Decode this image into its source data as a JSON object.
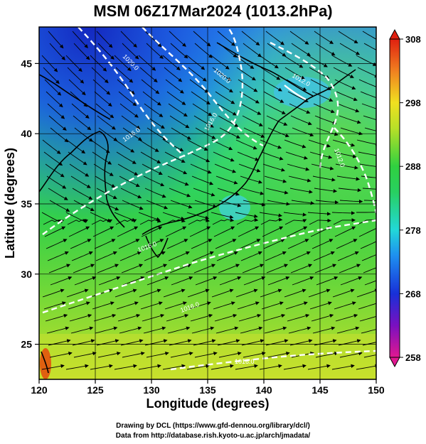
{
  "title": "MSM 06Z17Mar2024 (1013.2hPa)",
  "axes": {
    "xlabel": "Longitude (degrees)",
    "ylabel": "Latitude  (degrees)",
    "xlim": [
      120,
      150
    ],
    "ylim": [
      22.5,
      47.6
    ],
    "xticks": [
      "120",
      "125",
      "130",
      "135",
      "140",
      "145",
      "150"
    ],
    "yticks": [
      "25",
      "30",
      "35",
      "40",
      "45"
    ]
  },
  "colorbar": {
    "min": 258,
    "max": 308,
    "ticks": [
      "258",
      "268",
      "278",
      "288",
      "298",
      "308"
    ]
  },
  "isobar_labels": [
    "1020.0",
    "1020.0",
    "1016.0",
    "1016.0",
    "1012.0",
    "1016.0",
    "1016.0",
    "1016.0",
    "1012.0"
  ],
  "credits": {
    "line1": "Drawing by DCL (https://www.gfd-dennou.org/library/dcl/)",
    "line2": "Data from http://database.rish.kyoto-u.ac.jp/arch/jmadata/"
  },
  "colors": {
    "cold": "#1a3fd0",
    "cool": "#27b0f0",
    "mild": "#2ddc6a",
    "warm": "#b5e030",
    "hot": "#e04010",
    "isobar": "#ffffff",
    "streamline": "#000000"
  }
}
